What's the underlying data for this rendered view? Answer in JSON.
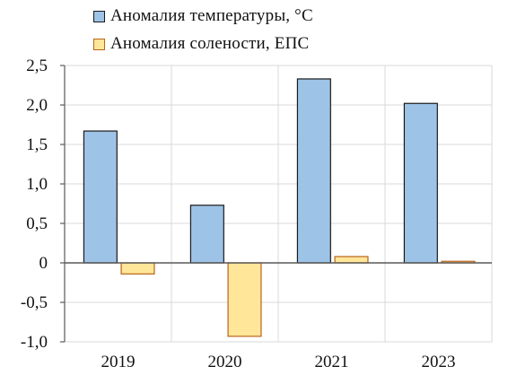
{
  "chart_data": {
    "type": "bar",
    "categories": [
      "2019",
      "2020",
      "2021",
      "2023"
    ],
    "series": [
      {
        "name": "Аномалия температуры, °C",
        "values": [
          1.67,
          0.73,
          2.33,
          2.02
        ],
        "color": "#9dc3e6"
      },
      {
        "name": "Аномалия солености, ЕПС",
        "values": [
          -0.14,
          -0.93,
          0.08,
          0.02
        ],
        "color": "#ffe699"
      }
    ],
    "y_ticks": [
      "2,5",
      "2,0",
      "1,5",
      "1,0",
      "0,5",
      "0",
      "-0,5",
      "-1,0"
    ],
    "ylim": [
      -1.0,
      2.5
    ],
    "title": "",
    "xlabel": "",
    "ylabel": "",
    "grid": true,
    "legend_position": "top",
    "colors": {
      "grid": "#d9d9d9",
      "axis": "#595959",
      "bar_edge": "#1a1a1a",
      "salinity_edge": "#b8641c"
    }
  }
}
